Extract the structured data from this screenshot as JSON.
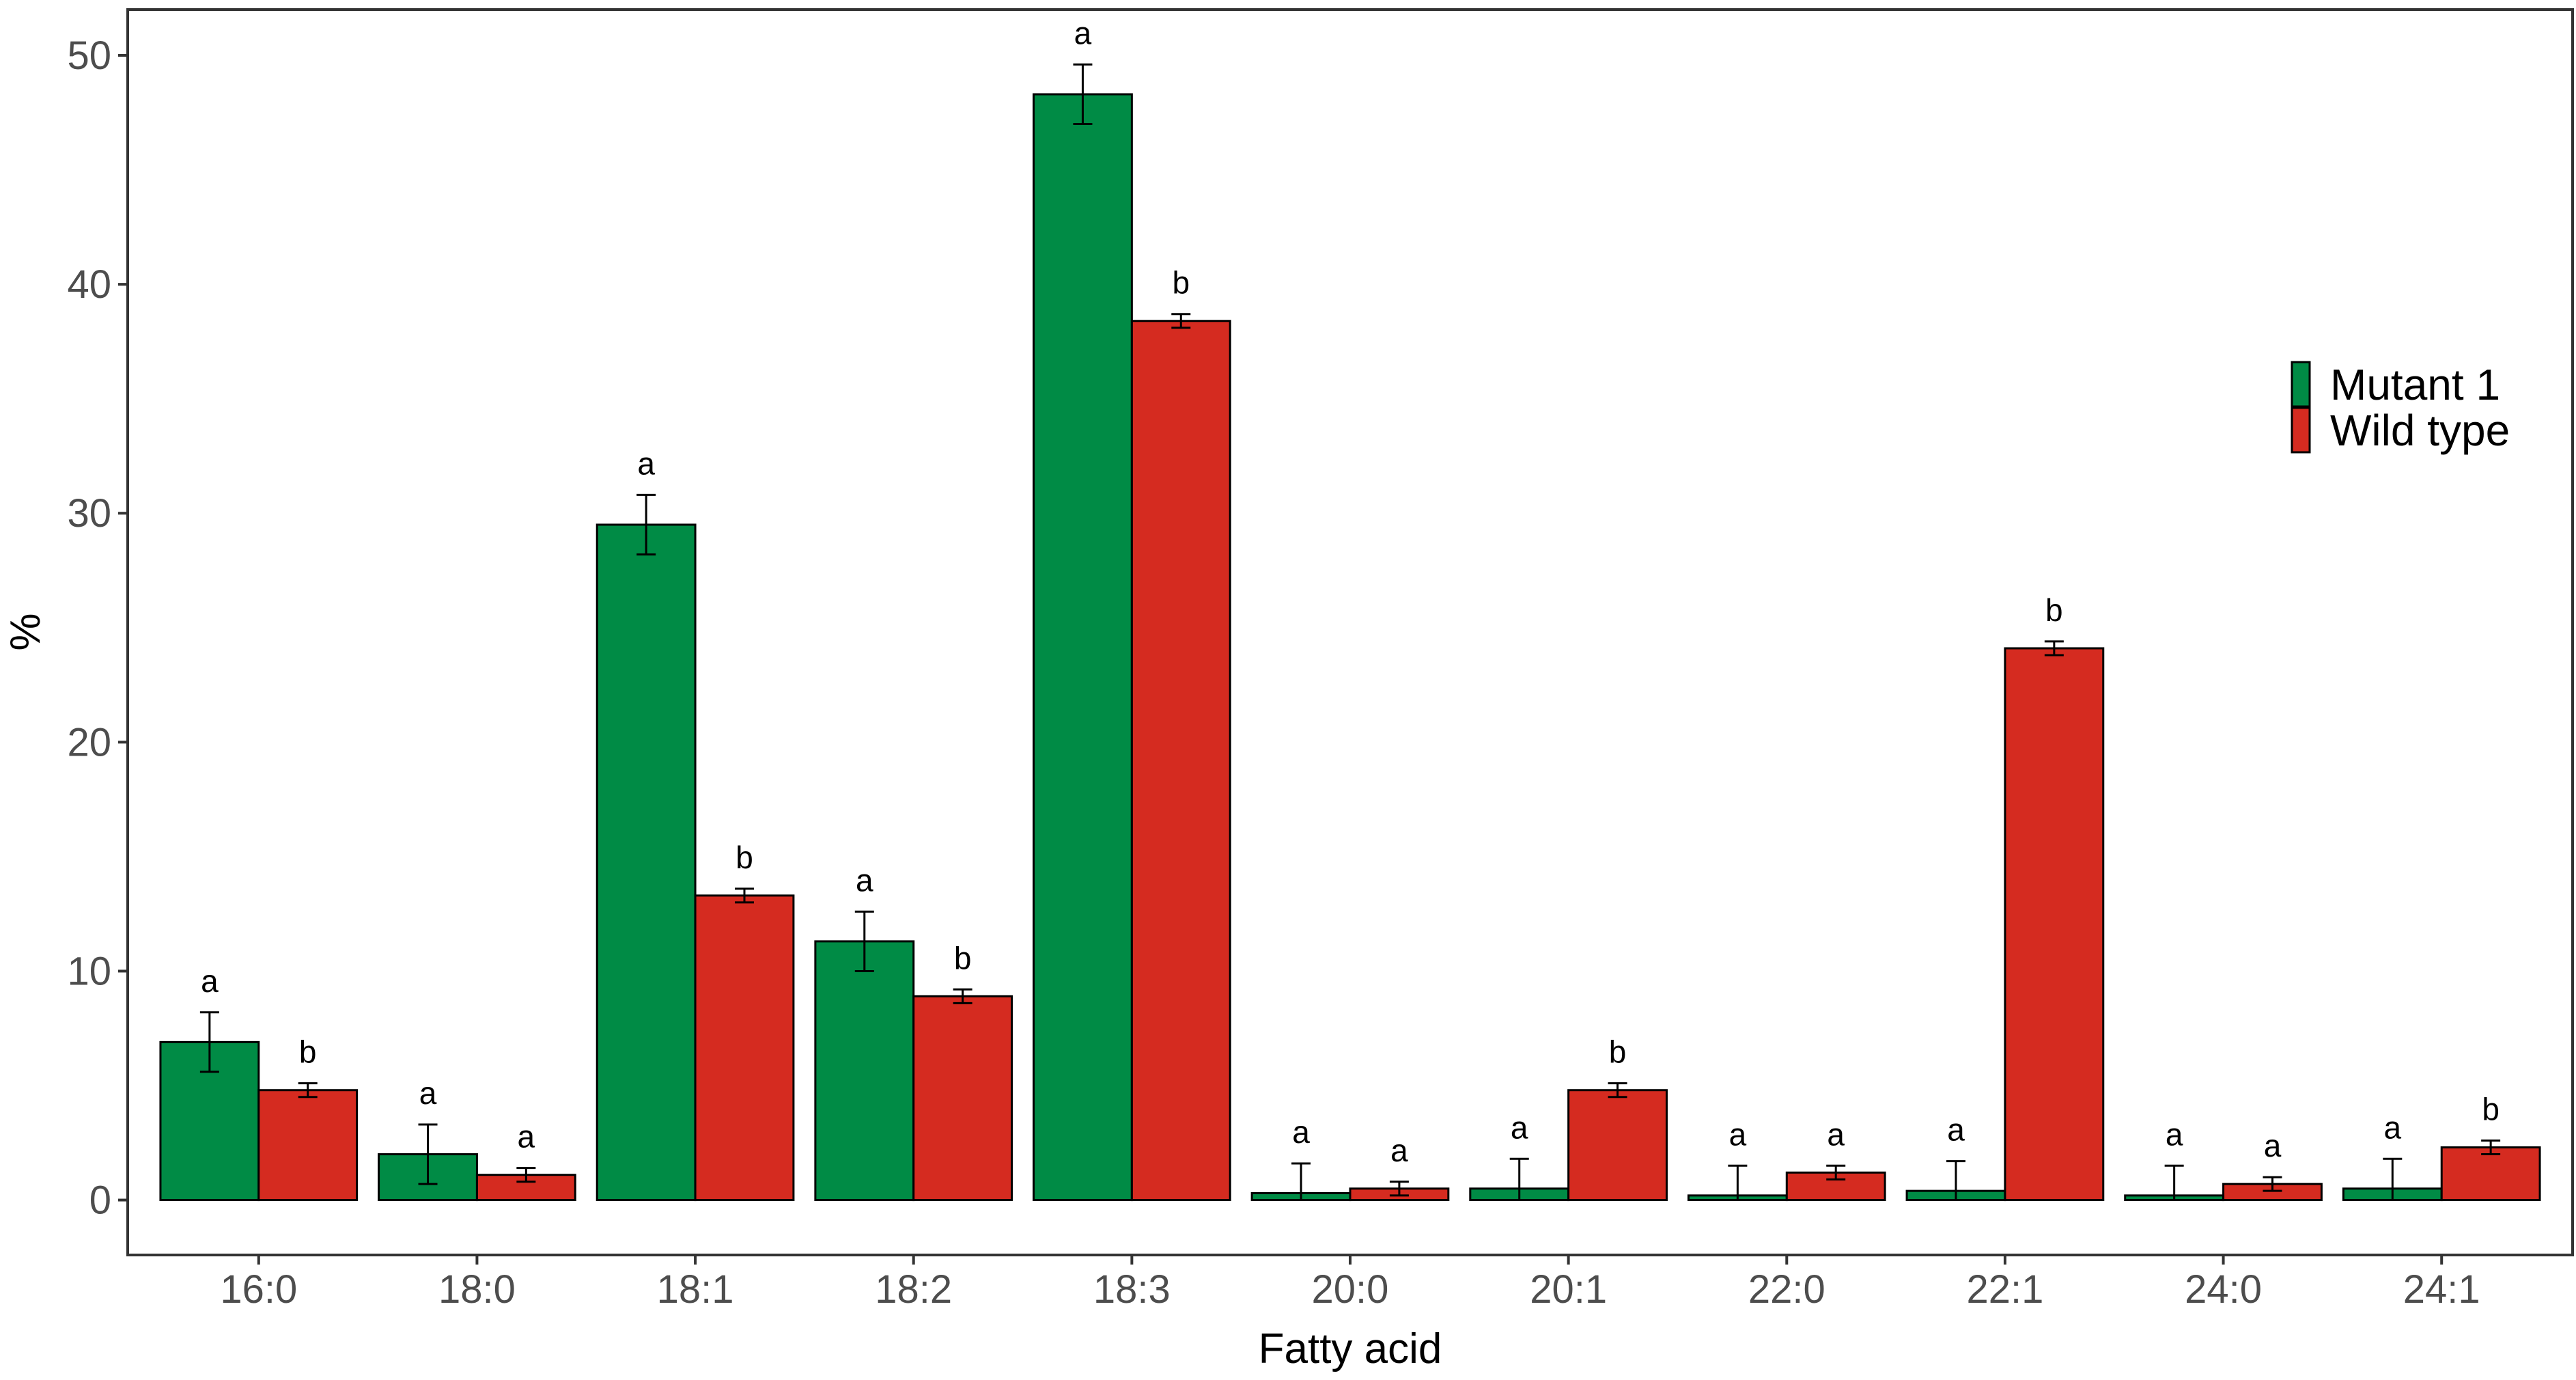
{
  "chart_data": {
    "type": "bar",
    "xlabel": "Fatty acid",
    "ylabel": "%",
    "ylim": [
      -2.4,
      52
    ],
    "yticks": [
      0,
      10,
      20,
      30,
      40,
      50
    ],
    "categories": [
      "16:0",
      "18:0",
      "18:1",
      "18:2",
      "18:3",
      "20:0",
      "20:1",
      "22:0",
      "22:1",
      "24:0",
      "24:1"
    ],
    "series": [
      {
        "name": "Mutant 1",
        "color": "#008b45",
        "values": [
          6.9,
          2.0,
          29.5,
          11.3,
          48.3,
          0.3,
          0.5,
          0.2,
          0.4,
          0.2,
          0.5
        ],
        "errors": [
          1.3,
          1.3,
          1.3,
          1.3,
          1.3,
          1.3,
          1.3,
          1.3,
          1.3,
          1.3,
          1.3
        ],
        "sig": [
          "a",
          "a",
          "a",
          "a",
          "a",
          "a",
          "a",
          "a",
          "a",
          "a",
          "a"
        ]
      },
      {
        "name": "Wild type",
        "color": "#d52b20",
        "values": [
          4.8,
          1.1,
          13.3,
          8.9,
          38.4,
          0.5,
          4.8,
          1.2,
          24.1,
          0.7,
          2.3
        ],
        "errors": [
          0.3,
          0.3,
          0.3,
          0.3,
          0.3,
          0.3,
          0.3,
          0.3,
          0.3,
          0.3,
          0.3
        ],
        "sig": [
          "b",
          "a",
          "b",
          "b",
          "b",
          "a",
          "b",
          "a",
          "b",
          "a",
          "b"
        ]
      }
    ],
    "legend_position": "right",
    "grid": false
  }
}
